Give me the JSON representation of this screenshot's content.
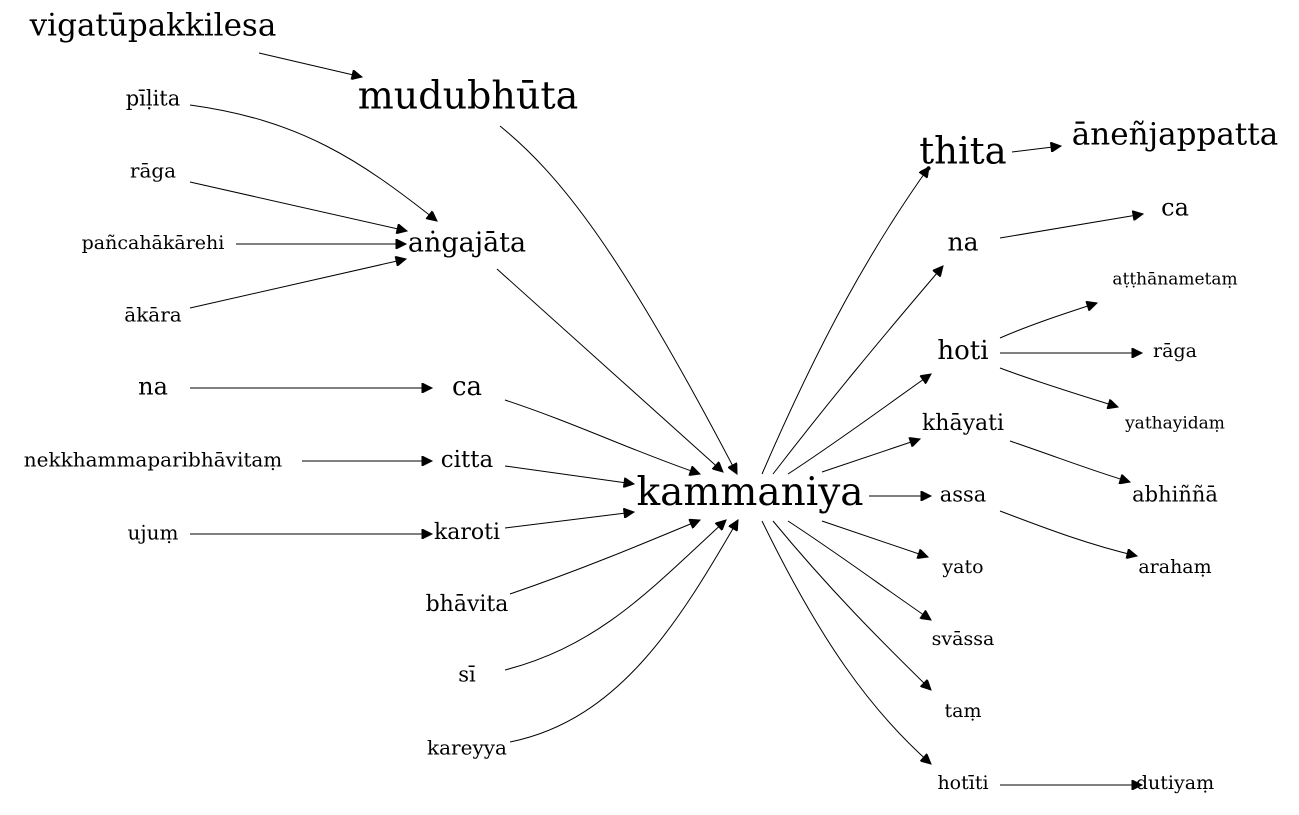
{
  "nodes": {
    "vigatupakkilesa": "vigatūpakkilesa",
    "mudubhuta": "mudubhūta",
    "pilita": "pīḷita",
    "raga_left": "rāga",
    "pancahakarehi": "pañcahākārehi",
    "angajata": "aṅgajāta",
    "akara": "ākāra",
    "na_left": "na",
    "ca_left": "ca",
    "nekkhamma": "nekkhammaparibhāvitaṃ",
    "citta": "citta",
    "ujum": "ujuṃ",
    "karoti": "karoti",
    "bhavita": "bhāvita",
    "si": "sī",
    "kareyya": "kareyya",
    "kammaniya": "kammaniya",
    "thita": "ṭhita",
    "anenjappatta": "āneñjappatta",
    "na_right": "na",
    "ca_right": "ca",
    "hoti": "hoti",
    "atthanametam": "aṭṭhānametaṃ",
    "raga_right": "rāga",
    "yathayidam": "yathayidaṃ",
    "khayati": "khāyati",
    "abhinna": "abhiññā",
    "assa": "assa",
    "araham": "arahaṃ",
    "yato": "yato",
    "svassa": "svāssa",
    "tam": "taṃ",
    "hotiti": "hotīti",
    "dutiyam": "dutiyaṃ"
  },
  "colors": {
    "stroke": "#000000",
    "text": "#000000",
    "background": "#ffffff"
  }
}
